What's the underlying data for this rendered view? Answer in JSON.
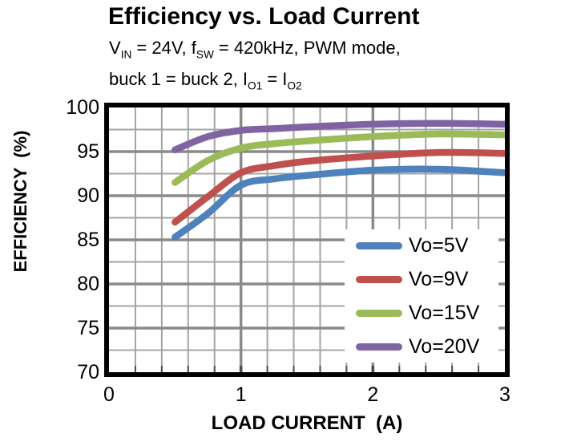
{
  "chart_data": {
    "type": "line",
    "title": "Efficiency vs. Load Current",
    "subtitle_lines": [
      [
        {
          "t": "V"
        },
        {
          "t": "IN",
          "sub": true
        },
        {
          "t": " = 24V, f"
        },
        {
          "t": "SW",
          "sub": true
        },
        {
          "t": " = 420kHz, PWM mode,"
        }
      ],
      [
        {
          "t": "buck 1 = buck 2, I"
        },
        {
          "t": "O1",
          "sub": true
        },
        {
          "t": " = I"
        },
        {
          "t": "O2",
          "sub": true
        }
      ]
    ],
    "x": [
      0.5,
      0.75,
      1,
      1.25,
      1.5,
      2,
      2.5,
      3
    ],
    "series": [
      {
        "name": "Vo=5V",
        "color": "#4F81BD",
        "values": [
          85.3,
          88.0,
          91.2,
          91.9,
          92.3,
          92.9,
          93.0,
          92.6
        ]
      },
      {
        "name": "Vo=9V",
        "color": "#C0504D",
        "values": [
          87.0,
          89.9,
          92.6,
          93.4,
          93.9,
          94.5,
          94.9,
          94.8
        ]
      },
      {
        "name": "Vo=15V",
        "color": "#9BBB59",
        "values": [
          91.5,
          94.0,
          95.4,
          95.9,
          96.2,
          96.7,
          97.0,
          96.9
        ]
      },
      {
        "name": "Vo=20V",
        "color": "#8064A2",
        "values": [
          95.2,
          96.7,
          97.4,
          97.6,
          97.8,
          98.1,
          98.2,
          98.1
        ]
      }
    ],
    "x_axis": {
      "title": "LOAD CURRENT  (A)",
      "min": 0,
      "max": 3,
      "major_step": 1,
      "minor_step": 0.2,
      "tick_labels": [
        0,
        1,
        2,
        3
      ]
    },
    "y_axis": {
      "title": "EFFICIENCY  (%)",
      "min": 70,
      "max": 100,
      "major_step": 5,
      "minor_step": 2.5,
      "tick_labels": [
        100,
        95,
        90,
        85,
        80,
        75,
        70
      ]
    },
    "grid": {
      "on": true,
      "minor_color": "#A4A4A4",
      "major_color": "#8A8A8A"
    },
    "legend": {
      "position": "inside-bottom-right"
    },
    "line_width": 8.5,
    "tick_color": "#4D4D4D"
  }
}
